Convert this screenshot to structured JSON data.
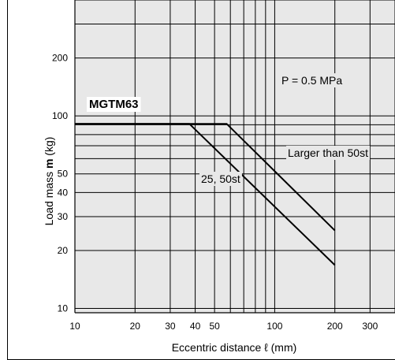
{
  "chart_data": {
    "type": "line",
    "title": "",
    "xlabel": "Eccentric distance ℓ (mm)",
    "ylabel_prefix": "Load mass ",
    "ylabel_symbol": "m",
    "ylabel_suffix": " (kg)",
    "x_scale": "log",
    "y_scale": "log",
    "xlim": [
      10,
      400
    ],
    "ylim": [
      9.5,
      400
    ],
    "xticks": [
      10,
      20,
      30,
      40,
      50,
      100,
      200,
      300
    ],
    "yticks": [
      10,
      20,
      30,
      40,
      50,
      100,
      200
    ],
    "grid": true,
    "series": [
      {
        "name": "25, 50st",
        "x": [
          10,
          37.4,
          200
        ],
        "y": [
          91,
          91,
          16.8
        ]
      },
      {
        "name": "Larger than 50st",
        "x": [
          10,
          57.5,
          200
        ],
        "y": [
          91,
          91,
          25.4
        ]
      }
    ],
    "model_label": "MGTM63",
    "pressure_label": "P = 0.5 MPa",
    "colors": {
      "background": "#e8e8e8",
      "grid": "#000000",
      "line": "#000000"
    }
  }
}
